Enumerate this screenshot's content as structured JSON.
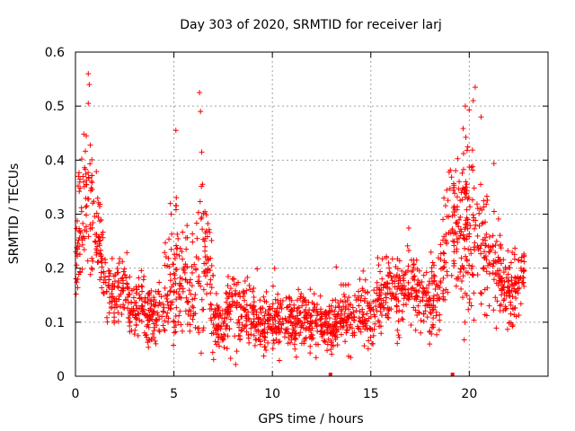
{
  "chart_data": {
    "type": "scatter",
    "title": "Day 303 of 2020, SRMTID for receiver larj",
    "xlabel": "GPS time / hours",
    "ylabel": "SRMTID / TECUs",
    "xlim": [
      0,
      24
    ],
    "ylim": [
      0,
      0.6
    ],
    "xticks": [
      0,
      5,
      10,
      15,
      20
    ],
    "xtick_labels": [
      "0",
      "5",
      "10",
      "15",
      "20"
    ],
    "yticks": [
      0,
      0.1,
      0.2,
      0.3,
      0.4,
      0.5,
      0.6
    ],
    "ytick_labels": [
      "0",
      "0.1",
      "0.2",
      "0.3",
      "0.4",
      "0.5",
      "0.6"
    ],
    "grid": true,
    "marker": "plus",
    "series": [
      {
        "name": "SRMTID",
        "color": "#ff0000",
        "envelope": {
          "x": [
            0,
            0.2,
            0.5,
            0.8,
            1.0,
            1.3,
            1.6,
            2.0,
            2.4,
            2.8,
            3.2,
            3.6,
            4.0,
            4.5,
            5.0,
            5.3,
            5.6,
            6.0,
            6.4,
            6.8,
            7.0,
            7.5,
            8.0,
            8.5,
            9.0,
            10.0,
            11.0,
            12.0,
            12.5,
            13.0,
            13.5,
            14.0,
            14.5,
            15.0,
            15.5,
            16.0,
            16.5,
            17.0,
            17.5,
            18.0,
            18.5,
            19.0,
            19.5,
            20.0,
            20.5,
            21.0,
            21.5,
            22.0,
            22.5,
            22.8
          ],
          "median": [
            0.2,
            0.3,
            0.32,
            0.31,
            0.28,
            0.24,
            0.16,
            0.14,
            0.18,
            0.11,
            0.14,
            0.12,
            0.11,
            0.14,
            0.19,
            0.2,
            0.18,
            0.17,
            0.22,
            0.17,
            0.1,
            0.09,
            0.14,
            0.11,
            0.1,
            0.1,
            0.1,
            0.1,
            0.09,
            0.1,
            0.11,
            0.12,
            0.12,
            0.11,
            0.14,
            0.16,
            0.15,
            0.17,
            0.15,
            0.15,
            0.16,
            0.28,
            0.26,
            0.28,
            0.27,
            0.22,
            0.2,
            0.15,
            0.16,
            0.2
          ],
          "spread": [
            0.03,
            0.12,
            0.1,
            0.1,
            0.07,
            0.05,
            0.04,
            0.04,
            0.04,
            0.04,
            0.05,
            0.04,
            0.04,
            0.05,
            0.1,
            0.08,
            0.07,
            0.07,
            0.12,
            0.08,
            0.04,
            0.03,
            0.06,
            0.04,
            0.04,
            0.04,
            0.04,
            0.035,
            0.035,
            0.035,
            0.035,
            0.04,
            0.04,
            0.04,
            0.05,
            0.05,
            0.05,
            0.05,
            0.05,
            0.05,
            0.06,
            0.1,
            0.1,
            0.12,
            0.1,
            0.08,
            0.06,
            0.05,
            0.05,
            0.04
          ]
        },
        "points_count": 2000,
        "peaks": [
          {
            "x": 0.65,
            "y": 0.56
          },
          {
            "x": 0.7,
            "y": 0.54
          },
          {
            "x": 0.65,
            "y": 0.505
          },
          {
            "x": 0.55,
            "y": 0.445
          },
          {
            "x": 5.1,
            "y": 0.455
          },
          {
            "x": 6.3,
            "y": 0.525
          },
          {
            "x": 6.35,
            "y": 0.49
          },
          {
            "x": 20.3,
            "y": 0.535
          },
          {
            "x": 20.2,
            "y": 0.51
          },
          {
            "x": 19.8,
            "y": 0.5
          },
          {
            "x": 20.6,
            "y": 0.48
          }
        ],
        "zero_points": [
          {
            "x": 12.95,
            "y": 0.0
          },
          {
            "x": 19.15,
            "y": 0.0
          }
        ]
      }
    ]
  }
}
